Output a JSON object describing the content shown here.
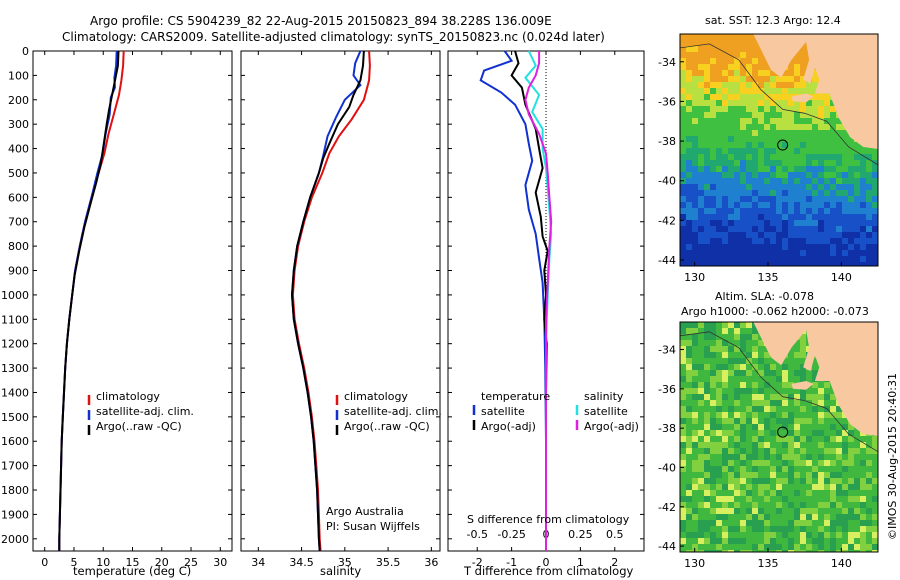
{
  "title_line1": "Argo profile: CS 5904239_82 22-Aug-2015 20150823_894 38.228S 136.009E",
  "title_line2": "Climatology: CARS2009. Satellite-adjusted climatology: synTS_20150823.nc (0.024d later)",
  "side_label": "©IMOS 30-Aug-2015 20:40:31",
  "sst_title": "sat. SST: 12.3 Argo: 12.4",
  "sla_title_line1": "Altim. SLA: -0.078",
  "sla_title_line2": "Argo h1000: -0.062 h2000: -0.073",
  "credit_line1": "Argo Australia",
  "credit_line2": "PI: Susan Wijffels",
  "colors": {
    "climatology": "#e01010",
    "satellite": "#1030d0",
    "argo": "#000000",
    "sat_salinity": "#20e0e0",
    "argo_salinity": "#e020e0",
    "land": "#f8c8a0"
  },
  "chart_data": [
    {
      "type": "line",
      "xlabel": "temperature (deg C)",
      "ylabel": "",
      "xlim": [
        -2,
        32
      ],
      "ylim": [
        2050,
        0
      ],
      "xticks": [
        0,
        5,
        10,
        15,
        20,
        25,
        30
      ],
      "yticks": [
        0,
        100,
        200,
        300,
        400,
        500,
        600,
        700,
        800,
        900,
        1000,
        1100,
        1200,
        1300,
        1400,
        1500,
        1600,
        1700,
        1800,
        1900,
        2000
      ],
      "legend": [
        "climatology",
        "satellite-adj. clim.",
        "Argo(..raw -QC)"
      ],
      "series": [
        {
          "name": "climatology",
          "color": "#e01010",
          "points": [
            [
              13.5,
              0
            ],
            [
              13.4,
              60
            ],
            [
              13.1,
              120
            ],
            [
              12.7,
              180
            ],
            [
              11.8,
              260
            ],
            [
              10.9,
              340
            ],
            [
              10.2,
              420
            ],
            [
              9.2,
              500
            ],
            [
              8.0,
              600
            ],
            [
              6.9,
              700
            ],
            [
              6.0,
              800
            ],
            [
              5.2,
              900
            ],
            [
              4.7,
              1000
            ],
            [
              4.2,
              1100
            ],
            [
              3.8,
              1200
            ],
            [
              3.5,
              1300
            ],
            [
              3.3,
              1400
            ],
            [
              3.1,
              1500
            ],
            [
              2.9,
              1600
            ],
            [
              2.8,
              1700
            ],
            [
              2.7,
              1800
            ],
            [
              2.6,
              1900
            ],
            [
              2.5,
              2000
            ],
            [
              2.5,
              2050
            ]
          ]
        },
        {
          "name": "satellite-adj. clim.",
          "color": "#1030d0",
          "points": [
            [
              12.3,
              0
            ],
            [
              12.2,
              60
            ],
            [
              11.9,
              110
            ],
            [
              12.0,
              150
            ],
            [
              11.3,
              190
            ],
            [
              11.1,
              260
            ],
            [
              10.4,
              340
            ],
            [
              9.9,
              420
            ],
            [
              9.0,
              500
            ],
            [
              8.0,
              600
            ],
            [
              6.9,
              700
            ],
            [
              6.0,
              800
            ],
            [
              5.2,
              900
            ],
            [
              4.7,
              1000
            ],
            [
              4.2,
              1100
            ],
            [
              3.8,
              1200
            ],
            [
              3.5,
              1300
            ],
            [
              3.3,
              1400
            ],
            [
              3.1,
              1500
            ],
            [
              2.9,
              1600
            ],
            [
              2.8,
              1700
            ],
            [
              2.7,
              1800
            ],
            [
              2.6,
              1900
            ],
            [
              2.5,
              2000
            ],
            [
              2.5,
              2050
            ]
          ]
        },
        {
          "name": "Argo(..raw -QC)",
          "color": "#000000",
          "points": [
            [
              12.6,
              0
            ],
            [
              12.5,
              60
            ],
            [
              12.1,
              110
            ],
            [
              11.6,
              170
            ],
            [
              11.0,
              240
            ],
            [
              10.6,
              300
            ],
            [
              10.1,
              380
            ],
            [
              9.6,
              460
            ],
            [
              8.8,
              540
            ],
            [
              7.9,
              620
            ],
            [
              6.8,
              720
            ],
            [
              5.9,
              820
            ],
            [
              5.1,
              920
            ],
            [
              4.6,
              1020
            ],
            [
              4.2,
              1100
            ],
            [
              3.8,
              1200
            ],
            [
              3.5,
              1300
            ],
            [
              3.3,
              1400
            ],
            [
              3.1,
              1500
            ],
            [
              2.9,
              1600
            ],
            [
              2.8,
              1700
            ],
            [
              2.7,
              1800
            ],
            [
              2.6,
              1900
            ],
            [
              2.5,
              2000
            ],
            [
              2.5,
              2050
            ]
          ]
        }
      ]
    },
    {
      "type": "line",
      "xlabel": "salinity",
      "ylabel": "",
      "xlim": [
        33.8,
        36.1
      ],
      "ylim": [
        2050,
        0
      ],
      "xticks": [
        34,
        34.5,
        35,
        35.5,
        36
      ],
      "legend": [
        "climatology",
        "satellite-adj. clim.",
        "Argo(..raw -QC)"
      ],
      "series": [
        {
          "name": "climatology",
          "color": "#e01010",
          "points": [
            [
              35.28,
              0
            ],
            [
              35.29,
              60
            ],
            [
              35.28,
              120
            ],
            [
              35.22,
              200
            ],
            [
              35.08,
              280
            ],
            [
              34.93,
              350
            ],
            [
              34.82,
              420
            ],
            [
              34.74,
              500
            ],
            [
              34.62,
              600
            ],
            [
              34.53,
              700
            ],
            [
              34.46,
              800
            ],
            [
              34.42,
              900
            ],
            [
              34.4,
              1000
            ],
            [
              34.42,
              1100
            ],
            [
              34.47,
              1200
            ],
            [
              34.53,
              1300
            ],
            [
              34.58,
              1400
            ],
            [
              34.62,
              1500
            ],
            [
              34.65,
              1600
            ],
            [
              34.67,
              1700
            ],
            [
              34.69,
              1800
            ],
            [
              34.7,
              1900
            ],
            [
              34.71,
              2000
            ],
            [
              34.72,
              2050
            ]
          ]
        },
        {
          "name": "satellite-adj. clim.",
          "color": "#1030d0",
          "points": [
            [
              35.18,
              0
            ],
            [
              35.12,
              50
            ],
            [
              35.1,
              100
            ],
            [
              35.18,
              140
            ],
            [
              35.0,
              200
            ],
            [
              34.9,
              270
            ],
            [
              34.8,
              350
            ],
            [
              34.75,
              430
            ],
            [
              34.7,
              500
            ],
            [
              34.6,
              600
            ],
            [
              34.52,
              700
            ],
            [
              34.45,
              800
            ],
            [
              34.41,
              900
            ],
            [
              34.39,
              1000
            ],
            [
              34.41,
              1100
            ],
            [
              34.46,
              1200
            ],
            [
              34.52,
              1300
            ],
            [
              34.57,
              1400
            ],
            [
              34.61,
              1500
            ],
            [
              34.64,
              1600
            ],
            [
              34.66,
              1700
            ],
            [
              34.68,
              1800
            ],
            [
              34.69,
              1900
            ],
            [
              34.7,
              2000
            ],
            [
              34.71,
              2050
            ]
          ]
        },
        {
          "name": "Argo(..raw -QC)",
          "color": "#000000",
          "points": [
            [
              35.22,
              0
            ],
            [
              35.21,
              60
            ],
            [
              35.18,
              120
            ],
            [
              35.1,
              180
            ],
            [
              35.05,
              230
            ],
            [
              34.92,
              300
            ],
            [
              34.82,
              380
            ],
            [
              34.75,
              440
            ],
            [
              34.7,
              500
            ],
            [
              34.6,
              600
            ],
            [
              34.52,
              700
            ],
            [
              34.45,
              800
            ],
            [
              34.41,
              900
            ],
            [
              34.39,
              1000
            ],
            [
              34.41,
              1100
            ],
            [
              34.46,
              1200
            ],
            [
              34.52,
              1300
            ],
            [
              34.57,
              1400
            ],
            [
              34.61,
              1500
            ],
            [
              34.64,
              1600
            ],
            [
              34.66,
              1700
            ],
            [
              34.68,
              1800
            ],
            [
              34.69,
              1900
            ],
            [
              34.7,
              2000
            ],
            [
              34.71,
              2050
            ]
          ]
        }
      ]
    },
    {
      "type": "line",
      "xlabel": "T difference from climatology",
      "xlabel_top": "S difference from climatology",
      "xlim": [
        -2.85,
        2.85
      ],
      "ylim": [
        2050,
        0
      ],
      "xticks": [
        -2,
        -1,
        0,
        1,
        2
      ],
      "xticks_top": [
        "-0.5",
        "-0.25",
        "0",
        "0.25",
        "0.5"
      ],
      "xticks_top_pos": [
        -2,
        -1,
        0,
        1,
        2
      ],
      "legend_left_title": "temperature",
      "legend_right_title": "salinity",
      "legend": [
        "satellite",
        "Argo(-adj)",
        "satellite",
        "Argo(-adj)"
      ],
      "series": [
        {
          "name": "satellite",
          "color": "#1030d0",
          "points": [
            [
              -1.2,
              0
            ],
            [
              -1.0,
              40
            ],
            [
              -1.8,
              80
            ],
            [
              -1.9,
              120
            ],
            [
              -1.3,
              170
            ],
            [
              -0.9,
              220
            ],
            [
              -0.6,
              300
            ],
            [
              -0.5,
              380
            ],
            [
              -0.4,
              450
            ],
            [
              -0.6,
              550
            ],
            [
              -0.5,
              650
            ],
            [
              -0.3,
              750
            ],
            [
              -0.2,
              850
            ],
            [
              -0.1,
              950
            ],
            [
              -0.05,
              1100
            ],
            [
              -0.02,
              1300
            ],
            [
              0,
              1600
            ],
            [
              0,
              2050
            ]
          ]
        },
        {
          "name": "Argo(-adj)",
          "color": "#000000",
          "points": [
            [
              -0.9,
              0
            ],
            [
              -0.8,
              50
            ],
            [
              -1.0,
              100
            ],
            [
              -0.7,
              150
            ],
            [
              -0.6,
              220
            ],
            [
              -0.3,
              320
            ],
            [
              -0.2,
              400
            ],
            [
              -0.1,
              480
            ],
            [
              -0.3,
              580
            ],
            [
              -0.15,
              680
            ],
            [
              -0.1,
              760
            ],
            [
              0.05,
              820
            ],
            [
              -0.05,
              900
            ],
            [
              0,
              1000
            ],
            [
              -0.05,
              1100
            ],
            [
              0.02,
              1200
            ],
            [
              0,
              1400
            ],
            [
              0,
              2050
            ]
          ]
        },
        {
          "name": "satellite",
          "color": "#20e0e0",
          "points": [
            [
              -0.5,
              0
            ],
            [
              -0.3,
              60
            ],
            [
              -0.6,
              110
            ],
            [
              -0.2,
              180
            ],
            [
              -0.4,
              250
            ],
            [
              -0.1,
              320
            ],
            [
              -0.1,
              400
            ],
            [
              0,
              480
            ],
            [
              0.05,
              560
            ],
            [
              0.1,
              650
            ],
            [
              0.15,
              750
            ],
            [
              0.1,
              850
            ],
            [
              0.05,
              1000
            ],
            [
              0,
              1200
            ],
            [
              0,
              2050
            ]
          ]
        },
        {
          "name": "Argo(-adj)",
          "color": "#e020e0",
          "points": [
            [
              -0.2,
              0
            ],
            [
              -0.2,
              50
            ],
            [
              -0.3,
              100
            ],
            [
              -0.5,
              150
            ],
            [
              -0.6,
              200
            ],
            [
              -0.5,
              260
            ],
            [
              -0.2,
              340
            ],
            [
              0,
              420
            ],
            [
              0.05,
              500
            ],
            [
              0.1,
              600
            ],
            [
              0.15,
              700
            ],
            [
              0.1,
              800
            ],
            [
              0.05,
              950
            ],
            [
              0,
              1100
            ],
            [
              0,
              2050
            ]
          ]
        }
      ]
    }
  ],
  "maps": [
    {
      "id": "sst",
      "xticks": [
        130,
        135,
        140
      ],
      "yticks": [
        -34,
        -36,
        -38,
        -40,
        -42,
        -44
      ],
      "marker": [
        136.0,
        -38.2
      ],
      "lon": [
        129.0,
        142.5
      ],
      "lat": [
        -44.3,
        -32.6
      ]
    },
    {
      "id": "sla",
      "xticks": [
        130,
        135,
        140
      ],
      "yticks": [
        -34,
        -36,
        -38,
        -40,
        -42,
        -44
      ],
      "marker": [
        136.0,
        -38.2
      ],
      "lon": [
        129.0,
        142.5
      ],
      "lat": [
        -44.3,
        -32.6
      ]
    }
  ]
}
